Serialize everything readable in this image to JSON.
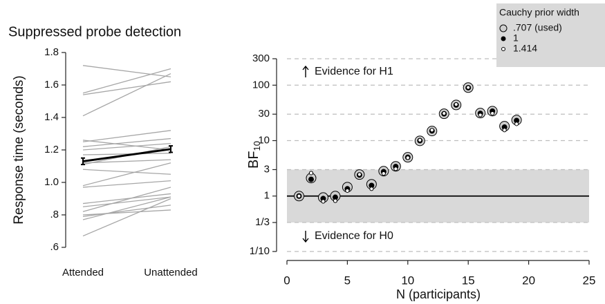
{
  "chart_data": [
    {
      "type": "slope",
      "title": "Suppressed probe detection",
      "ylabel": "Response time (seconds)",
      "categories": [
        "Attended",
        "Unattended"
      ],
      "ylim": [
        0.6,
        1.8
      ],
      "yticks": [
        {
          "value": 0.6,
          "label": ".6"
        },
        {
          "value": 0.8,
          "label": ".8"
        },
        {
          "value": 1,
          "label": "1.0"
        },
        1.2,
        1.4,
        1.6,
        1.8
      ],
      "line_color": "#a6a6a6",
      "lines": [
        [
          1.72,
          1.65
        ],
        [
          1.55,
          1.7
        ],
        [
          1.54,
          1.62
        ],
        [
          1.41,
          1.67
        ],
        [
          1.26,
          1.2
        ],
        [
          1.25,
          1.32
        ],
        [
          1.22,
          1.27
        ],
        [
          1.2,
          1.24
        ],
        [
          1.17,
          1.18
        ],
        [
          1.12,
          1.14
        ],
        [
          1.11,
          1.22
        ],
        [
          1.08,
          1.05
        ],
        [
          0.98,
          1.12
        ],
        [
          0.97,
          1.01
        ],
        [
          0.87,
          0.93
        ],
        [
          0.85,
          0.91
        ],
        [
          0.82,
          0.97
        ],
        [
          0.79,
          0.86
        ],
        [
          0.77,
          0.91
        ],
        [
          0.67,
          0.9
        ],
        [
          0.8,
          0.83
        ]
      ],
      "mean": {
        "color": "#000000",
        "values": [
          1.13,
          1.205
        ],
        "errors": [
          0.02,
          0.02
        ]
      }
    },
    {
      "type": "scatter",
      "ylabel": "BF",
      "ylabel_sub": "10",
      "xlabel": "N (participants)",
      "log_y": true,
      "grid": true,
      "xlim": [
        0,
        25
      ],
      "xticks": [
        0,
        5,
        10,
        15,
        20,
        25
      ],
      "ylim": [
        0.1,
        300
      ],
      "yticks": [
        {
          "value": 0.1,
          "label": "1/10"
        },
        {
          "value": 0.3333,
          "label": "1/3"
        },
        1,
        3,
        10,
        30,
        100,
        300
      ],
      "shaded_range": [
        0.3333,
        3
      ],
      "reference_line": 1,
      "annotations": [
        "Evidence for H1",
        "Evidence for H0"
      ],
      "legend_title": "Cauchy prior width",
      "legend_position": "upper right",
      "x": [
        1,
        2,
        3,
        4,
        5,
        6,
        7,
        8,
        9,
        10,
        11,
        12,
        13,
        14,
        15,
        16,
        17,
        18,
        19
      ],
      "series": [
        {
          "name": ".707 (used)",
          "color": "#cfcfcf",
          "values": [
            1.0,
            2.11,
            0.94,
            1.0,
            1.45,
            2.44,
            1.63,
            2.81,
            3.44,
            5.0,
            9.9,
            14.9,
            30.5,
            44,
            90.5,
            31.4,
            34,
            18.2,
            23.5
          ]
        },
        {
          "name": "1",
          "color": "#000000",
          "values": [
            1.0,
            2.0,
            0.9,
            0.95,
            1.35,
            2.4,
            1.55,
            2.75,
            3.4,
            5.0,
            10,
            15,
            30.5,
            44,
            90,
            31,
            34,
            17.5,
            23
          ]
        },
        {
          "name": "1.414",
          "color": "#ffffff",
          "values": [
            1.0,
            2.6,
            0.8,
            0.82,
            1.25,
            2.45,
            1.35,
            2.55,
            3.1,
            4.9,
            10.2,
            15.5,
            31,
            45,
            91,
            29,
            31,
            15.5,
            20
          ]
        }
      ]
    }
  ]
}
